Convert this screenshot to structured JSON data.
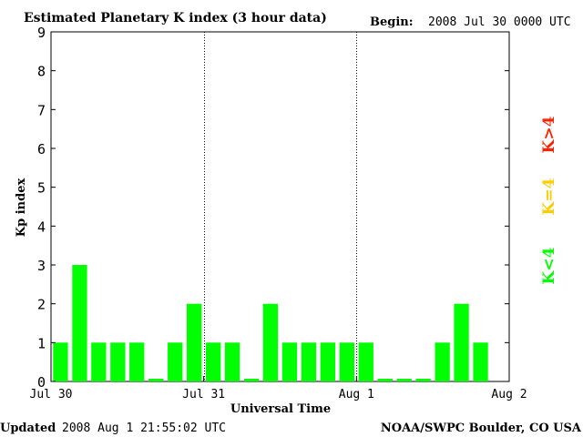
{
  "header": {
    "title": "Estimated Planetary K index (3 hour data)",
    "begin_label": "Begin:",
    "begin_value": "2008 Jul 30 0000 UTC"
  },
  "footer": {
    "updated_label": "Updated",
    "updated_value": "2008 Aug  1 21:55:02 UTC",
    "source": "NOAA/SWPC Boulder, CO USA"
  },
  "legend": {
    "low": "K<4",
    "mid": "K=4",
    "high": "K>4"
  },
  "colors": {
    "low": "#00ff00",
    "mid": "#ffcc00",
    "high": "#ff2200",
    "axis": "#000000"
  },
  "chart_data": {
    "type": "bar",
    "xlabel": "Universal Time",
    "ylabel": "Kp index",
    "ylim": [
      0,
      9
    ],
    "y_ticks": [
      "0",
      "1",
      "2",
      "3",
      "4",
      "5",
      "6",
      "7",
      "8",
      "9"
    ],
    "x_ticks": [
      "Jul 30",
      "Jul 31",
      "Aug 1",
      "Aug 2"
    ],
    "day_dividers": [
      "Jul 31",
      "Aug 1"
    ],
    "values": [
      1,
      3,
      1,
      1,
      1,
      0,
      1,
      2,
      1,
      1,
      0,
      2,
      1,
      1,
      1,
      1,
      1,
      0,
      0,
      0,
      1,
      2,
      1
    ]
  }
}
